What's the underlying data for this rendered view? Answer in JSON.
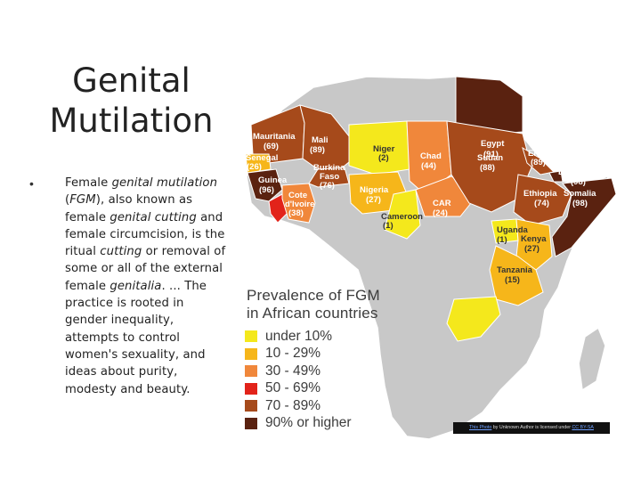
{
  "slide": {
    "title_line1": "Genital",
    "title_line2": "Mutilation",
    "bullet": "•",
    "body": {
      "t1": "Female ",
      "i1": "genital mutilation",
      "t2": " (",
      "i2": "FGM",
      "t3": "), also known as female ",
      "i3": "genital cutting",
      "t4": " and female circumcision, is the ritual ",
      "i4": "cutting",
      "t5": " or removal of some or all of the external female ",
      "i5": "genitalia",
      "t6": ". ... The practice is rooted in gender inequality, attempts to control women's sexuality, and ideas about purity, modesty and beauty."
    }
  },
  "map": {
    "legend_title_line1": "Prevalence of FGM",
    "legend_title_line2": "in African countries",
    "legend": [
      {
        "label": "under 10%",
        "color": "#f4e81c"
      },
      {
        "label": "10 - 29%",
        "color": "#f6b61a"
      },
      {
        "label": "30 - 49%",
        "color": "#f0873b"
      },
      {
        "label": "50 - 69%",
        "color": "#e2231a"
      },
      {
        "label": "70 - 89%",
        "color": "#a64a1b"
      },
      {
        "label": "90% or higher",
        "color": "#5a2210"
      }
    ],
    "base_color": "#c8c8c8",
    "countries": [
      {
        "name": "Egypt",
        "value": "(91)"
      },
      {
        "name": "Mauritania",
        "value": "(69)"
      },
      {
        "name": "Mali",
        "value": "(89)"
      },
      {
        "name": "Niger",
        "value": "(2)"
      },
      {
        "name": "Chad",
        "value": "(44)"
      },
      {
        "name": "Sudan",
        "value": "(88)"
      },
      {
        "name": "Eritrea",
        "value": "(89)"
      },
      {
        "name": "Senegal",
        "value": "(26)"
      },
      {
        "name": "Burkina",
        "value": ""
      },
      {
        "name": "Faso",
        "value": "(76)"
      },
      {
        "name": "Djibouti",
        "value": "(98)"
      },
      {
        "name": "Guinea",
        "value": "(96)"
      },
      {
        "name": "Nigeria",
        "value": "(27)"
      },
      {
        "name": "Ethiopia",
        "value": "(74)"
      },
      {
        "name": "Somalia",
        "value": "(98)"
      },
      {
        "name": "Cote",
        "value": ""
      },
      {
        "name": "d'Ivoire",
        "value": "(38)"
      },
      {
        "name": "Cameroon",
        "value": "(1)"
      },
      {
        "name": "CAR",
        "value": "(24)"
      },
      {
        "name": "Uganda",
        "value": "(1)"
      },
      {
        "name": "Kenya",
        "value": "(27)"
      },
      {
        "name": "Tanzania",
        "value": "(15)"
      }
    ]
  },
  "attribution": {
    "link1": "This Photo",
    "mid": " by Unknown Author is licensed under ",
    "link2": "CC BY-SA"
  }
}
